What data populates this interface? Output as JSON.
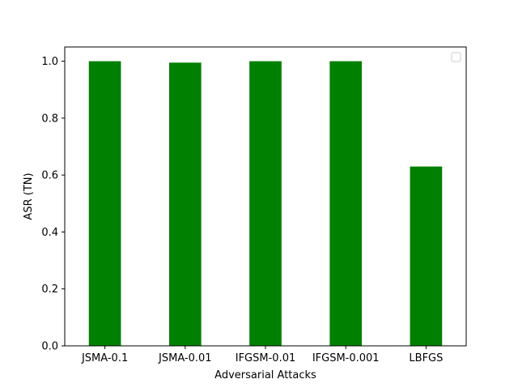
{
  "chart_data": {
    "type": "bar",
    "title": "",
    "xlabel": "Adversarial Attacks",
    "ylabel": "ASR (TN)",
    "categories": [
      "JSMA-0.1",
      "JSMA-0.01",
      "IFGSM-0.01",
      "IFGSM-0.001",
      "LBFGS"
    ],
    "values": [
      1.0,
      0.995,
      1.0,
      1.0,
      0.63
    ],
    "ylim": [
      0,
      1.05
    ],
    "yticks": [
      "0.0",
      "0.2",
      "0.4",
      "0.6",
      "0.8",
      "1.0"
    ],
    "ytick_values": [
      0.0,
      0.2,
      0.4,
      0.6,
      0.8,
      1.0
    ],
    "bar_color": "#008000",
    "grid": false,
    "legend": {
      "placement": "top-right",
      "entries": []
    }
  }
}
